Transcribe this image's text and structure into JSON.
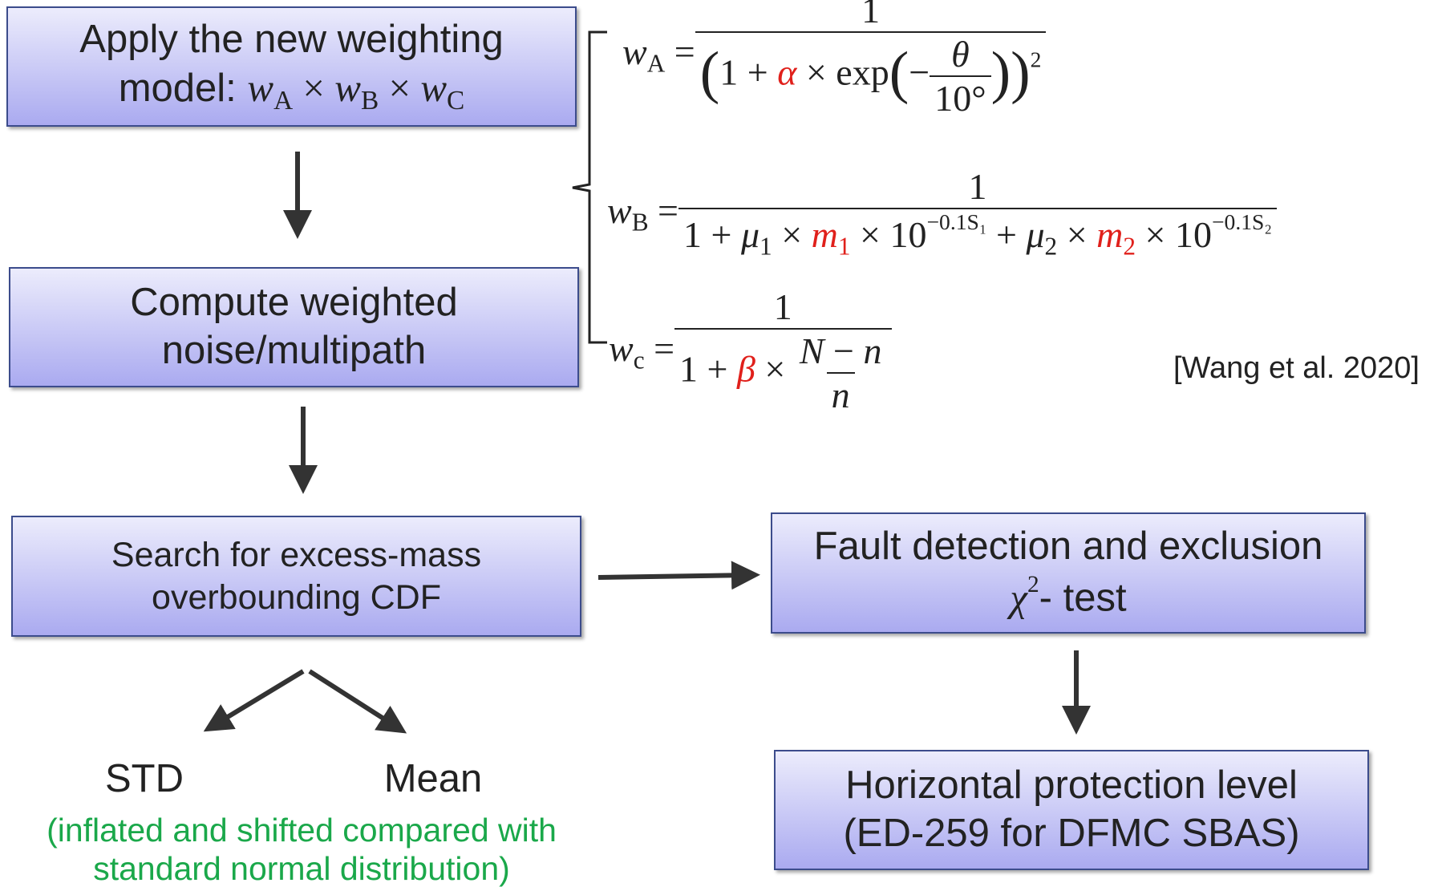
{
  "nodes": [
    {
      "lines": [
        [
          {
            "t": "Apply the new weighting"
          }
        ],
        [
          {
            "t": "model: "
          },
          {
            "t": "w",
            "s": "i"
          },
          {
            "t": "A",
            "s": "sub"
          },
          {
            "t": " × ",
            "s": "m"
          },
          {
            "t": "w",
            "s": "i"
          },
          {
            "t": "B",
            "s": "sub"
          },
          {
            "t": " × ",
            "s": "m"
          },
          {
            "t": "w",
            "s": "i"
          },
          {
            "t": "C",
            "s": "sub"
          }
        ]
      ]
    },
    {
      "lines": [
        [
          {
            "t": "Compute weighted"
          }
        ],
        [
          {
            "t": "noise/multipath"
          }
        ]
      ]
    },
    {
      "lines": [
        [
          {
            "t": "Search for excess-mass"
          }
        ],
        [
          {
            "t": "overbounding CDF"
          }
        ]
      ]
    },
    {
      "lines": [
        [
          {
            "t": "Fault detection and exclusion"
          }
        ],
        [
          {
            "t": "χ",
            "s": "i"
          },
          {
            "t": "2",
            "s": "sup"
          },
          {
            "t": "- test"
          }
        ]
      ]
    },
    {
      "lines": [
        [
          {
            "t": "Horizontal protection level"
          }
        ],
        [
          {
            "t": "(ED-259 for DFMC SBAS)"
          }
        ]
      ]
    }
  ],
  "formulas": [
    {
      "lhs": [
        {
          "t": "w",
          "s": "i"
        },
        {
          "t": "A",
          "s": "sub"
        },
        {
          "t": " = ",
          "s": "m"
        }
      ],
      "num": [
        {
          "t": "1",
          "s": "m"
        }
      ],
      "den": [
        {
          "t": "(",
          "s": "big"
        },
        {
          "t": "1 + ",
          "s": "m"
        },
        {
          "t": "α",
          "s": "i",
          "color": "#e0201b"
        },
        {
          "t": " × exp",
          "s": "m"
        },
        {
          "t": "(",
          "s": "big"
        },
        {
          "t": "−",
          "s": "m"
        },
        {
          "frac": [
            [
              {
                "t": "θ",
                "s": "i"
              }
            ],
            [
              {
                "t": "10°",
                "s": "m"
              }
            ]
          ]
        },
        {
          "t": "))",
          "s": "big"
        },
        {
          "t": "2",
          "s": "sup"
        }
      ]
    },
    {
      "lhs": [
        {
          "t": "w",
          "s": "i"
        },
        {
          "t": "B",
          "s": "sub"
        },
        {
          "t": " = ",
          "s": "m"
        }
      ],
      "num": [
        {
          "t": "1",
          "s": "m"
        }
      ],
      "den": [
        {
          "t": "1 + ",
          "s": "m"
        },
        {
          "t": "μ",
          "s": "i"
        },
        {
          "t": "1",
          "s": "sub"
        },
        {
          "t": " × ",
          "s": "m"
        },
        {
          "t": "m",
          "s": "i",
          "color": "#e0201b"
        },
        {
          "t": "1",
          "s": "sub",
          "color": "#e0201b"
        },
        {
          "t": " × 10",
          "s": "m"
        },
        {
          "t": "−0.1S₁",
          "s": "sup"
        },
        {
          "t": " + ",
          "s": "m"
        },
        {
          "t": "μ",
          "s": "i"
        },
        {
          "t": "2",
          "s": "sub"
        },
        {
          "t": " × ",
          "s": "m"
        },
        {
          "t": "m",
          "s": "i",
          "color": "#e0201b"
        },
        {
          "t": "2",
          "s": "sub",
          "color": "#e0201b"
        },
        {
          "t": " × 10",
          "s": "m"
        },
        {
          "t": "−0.1S₂",
          "s": "sup"
        }
      ]
    },
    {
      "lhs": [
        {
          "t": "w",
          "s": "i"
        },
        {
          "t": "c",
          "s": "sub"
        },
        {
          "t": " = ",
          "s": "m"
        }
      ],
      "num": [
        {
          "t": "1",
          "s": "m"
        }
      ],
      "den": [
        {
          "t": "1 + ",
          "s": "m"
        },
        {
          "t": "β",
          "s": "i",
          "color": "#e0201b"
        },
        {
          "t": " × ",
          "s": "m"
        },
        {
          "frac": [
            [
              {
                "t": "N",
                "s": "i"
              },
              {
                "t": " − ",
                "s": "m"
              },
              {
                "t": "n",
                "s": "i"
              }
            ],
            [
              {
                "t": "n",
                "s": "i"
              }
            ]
          ]
        }
      ]
    }
  ],
  "outputs": [
    "STD",
    "Mean"
  ],
  "note": [
    "(inflated and shifted compared with",
    "standard normal distribution)"
  ],
  "citation": "[Wang et al. 2020]"
}
